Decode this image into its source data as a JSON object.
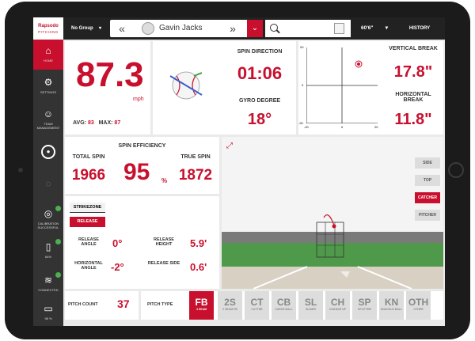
{
  "brand": {
    "name": "Rapsodo",
    "sub": "PITCHING"
  },
  "topbar": {
    "group": "No Group",
    "player": "Gavin Jacks",
    "height": "60'6\"",
    "history": "HISTORY",
    "prev": "«",
    "next": "»",
    "dropdown": "⌄"
  },
  "sidebar": {
    "items": [
      {
        "label": "HOME",
        "icon": "home-icon"
      },
      {
        "label": "SETTINGS",
        "icon": "gear-icon"
      },
      {
        "label": "TEAM MANAGEMENT",
        "icon": "team-icon"
      },
      {
        "label": "",
        "icon": "record-icon"
      },
      {
        "label": "CALIBRATION SUCCESSFUL",
        "icon": "calibration-icon"
      },
      {
        "label": "64%",
        "icon": "device-battery-icon"
      },
      {
        "label": "CONNECTED",
        "icon": "wifi-icon"
      },
      {
        "label": "98 %",
        "icon": "battery-icon"
      }
    ]
  },
  "velocity": {
    "value": "87.3",
    "unit": "mph",
    "avg_label": "AVG:",
    "avg": "83",
    "max_label": "MAX:",
    "max": "87"
  },
  "spin_dir": {
    "label": "SPIN DIRECTION",
    "value": "01:06",
    "gyro_label": "GYRO DEGREE",
    "gyro": "18°"
  },
  "break_plot": {
    "y_top": "20",
    "y_mid": "0",
    "y_bot": "-20",
    "x_left": "-20",
    "x_mid": "0",
    "x_right": "20"
  },
  "breaks": {
    "vertical_label": "VERTICAL BREAK",
    "vertical": "17.8\"",
    "horizontal_label": "HORIZONTAL BREAK",
    "horizontal": "11.8\""
  },
  "spin": {
    "eff_label": "SPIN EFFICIENCY",
    "total_label": "TOTAL SPIN",
    "total": "1966",
    "eff": "95",
    "eff_unit": "%",
    "true_label": "TRUE SPIN",
    "true": "1872"
  },
  "strikezone": {
    "tab": "STRIKEZONE",
    "release_btn": "RELEASE",
    "angle_label": "RELEASE ANGLE",
    "angle": "0°",
    "height_label": "RELEASE HEIGHT",
    "height": "5.9'",
    "hangle_label": "HORIZONTAL ANGLE",
    "hangle": "-2°",
    "side_label": "RELEASE SIDE",
    "side": "0.6'"
  },
  "views": {
    "side": "SIDE",
    "top": "TOP",
    "catcher": "CATCHER",
    "pitcher": "PITCHER"
  },
  "pitch": {
    "count_label": "PITCH COUNT",
    "count": "37",
    "type_label": "PITCH TYPE",
    "types": [
      {
        "code": "FB",
        "name": "4 SEAM"
      },
      {
        "code": "2S",
        "name": "2 SEAM FB"
      },
      {
        "code": "CT",
        "name": "CUTTER"
      },
      {
        "code": "CB",
        "name": "CURVE BALL"
      },
      {
        "code": "SL",
        "name": "SLIDER"
      },
      {
        "code": "CH",
        "name": "CHANGE UP"
      },
      {
        "code": "SP",
        "name": "SPLITTER"
      },
      {
        "code": "KN",
        "name": "KNUCKLE BALL"
      },
      {
        "code": "OTH",
        "name": "OTHER"
      }
    ]
  },
  "colors": {
    "accent": "#c8102e",
    "dark": "#333333"
  }
}
